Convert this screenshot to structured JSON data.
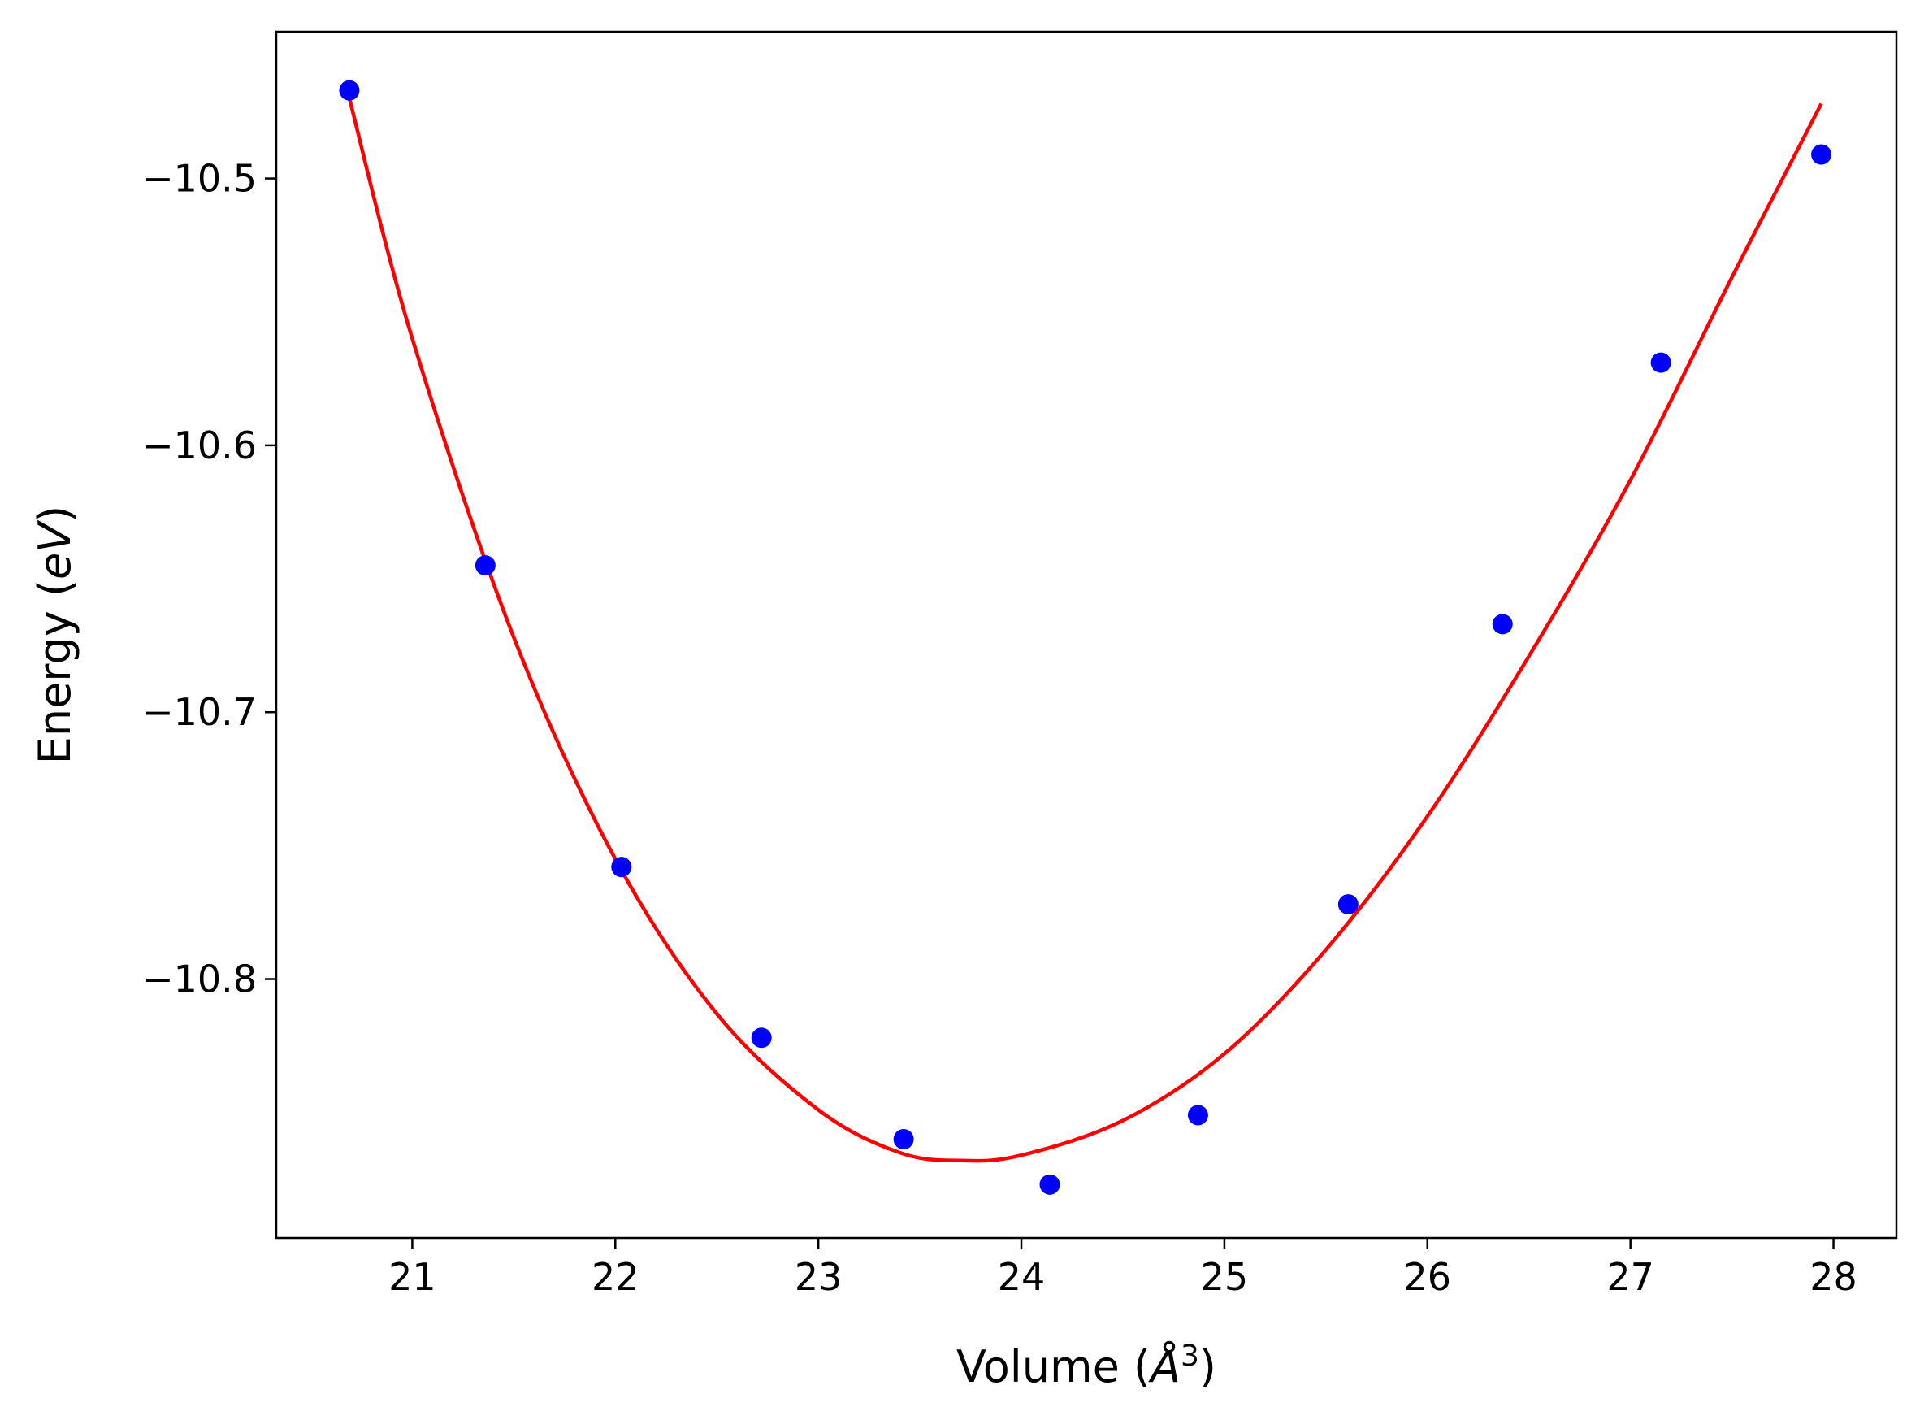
{
  "chart_data": {
    "type": "scatter",
    "xlabel": "Volume (",
    "xlabel_unit": "Å",
    "xlabel_sup": "3",
    "xlabel_tail": ")",
    "ylabel": "Energy (",
    "ylabel_unit": "eV",
    "ylabel_tail": ")",
    "xlim": [
      20.33,
      28.31
    ],
    "ylim": [
      -10.897,
      -10.445
    ],
    "xticks": [
      21,
      22,
      23,
      24,
      25,
      26,
      27,
      28
    ],
    "xtick_labels": [
      "21",
      "22",
      "23",
      "24",
      "25",
      "26",
      "27",
      "28"
    ],
    "yticks": [
      -10.5,
      -10.6,
      -10.7,
      -10.8
    ],
    "ytick_labels": [
      "−10.5",
      "−10.6",
      "−10.7",
      "−10.8"
    ],
    "grid": false,
    "series": [
      {
        "kind": "markers",
        "color": "#0000ff",
        "x": [
          20.69,
          21.36,
          22.03,
          22.72,
          23.42,
          24.14,
          24.87,
          25.61,
          26.37,
          27.15,
          27.94
        ],
        "y": [
          -10.467,
          -10.645,
          -10.758,
          -10.822,
          -10.86,
          -10.877,
          -10.851,
          -10.772,
          -10.667,
          -10.569,
          -10.491
        ]
      },
      {
        "kind": "line",
        "color": "#ff0000",
        "x": [
          20.69,
          21.0,
          21.5,
          22.0,
          22.5,
          23.0,
          23.4,
          23.7,
          24.0,
          24.5,
          25.0,
          25.5,
          26.0,
          26.5,
          27.0,
          27.5,
          27.94
        ],
        "y": [
          -10.47,
          -10.56,
          -10.672,
          -10.755,
          -10.813,
          -10.849,
          -10.865,
          -10.868,
          -10.866,
          -10.853,
          -10.828,
          -10.789,
          -10.739,
          -10.679,
          -10.613,
          -10.537,
          -10.472
        ]
      }
    ]
  }
}
